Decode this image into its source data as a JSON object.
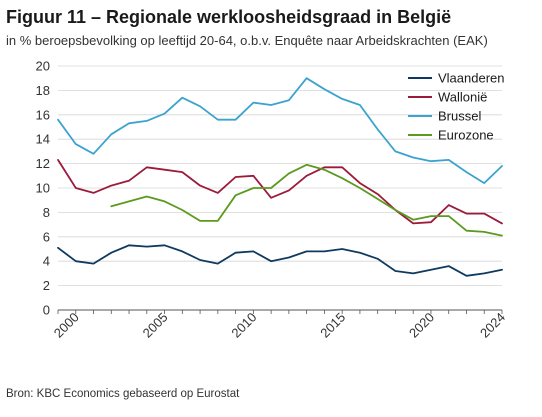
{
  "header": {
    "title": "Figuur 11 – Regionale werkloosheidsgraad in België",
    "subtitle": "in % beroepsbevolking op leeftijd 20-64, o.b.v. Enquête naar Arbeidskrachten (EAK)"
  },
  "footer": {
    "source": "Bron: KBC Economics gebaseerd op Eurostat"
  },
  "chart_data": {
    "type": "line",
    "title": "Figuur 11 – Regionale werkloosheidsgraad in België",
    "subtitle": "in % beroepsbevolking op leeftijd 20-64, o.b.v. Enquête naar Arbeidskrachten (EAK)",
    "xlabel": "",
    "ylabel": "",
    "x": [
      1999,
      2000,
      2001,
      2002,
      2003,
      2004,
      2005,
      2006,
      2007,
      2008,
      2009,
      2010,
      2011,
      2012,
      2013,
      2014,
      2015,
      2016,
      2017,
      2018,
      2019,
      2020,
      2021,
      2022,
      2023,
      2024
    ],
    "x_ticks": [
      2000,
      2005,
      2010,
      2015,
      2020,
      2024
    ],
    "xlim": [
      1999,
      2024
    ],
    "ylim": [
      0,
      20
    ],
    "y_ticks": [
      0,
      2,
      4,
      6,
      8,
      10,
      12,
      14,
      16,
      18,
      20
    ],
    "grid": "horizontal",
    "legend_position": "top-right",
    "series": [
      {
        "name": "Vlaanderen",
        "color": "#0f3a5f",
        "values": [
          5.1,
          4.0,
          3.8,
          4.7,
          5.3,
          5.2,
          5.3,
          4.8,
          4.1,
          3.8,
          4.7,
          4.8,
          4.0,
          4.3,
          4.8,
          4.8,
          5.0,
          4.7,
          4.2,
          3.2,
          3.0,
          3.3,
          3.6,
          2.8,
          3.0,
          3.3
        ]
      },
      {
        "name": "Wallonië",
        "color": "#9b1b3b",
        "values": [
          12.3,
          10.0,
          9.6,
          10.2,
          10.6,
          11.7,
          11.5,
          11.3,
          10.2,
          9.6,
          10.9,
          11.0,
          9.2,
          9.8,
          11.0,
          11.7,
          11.7,
          10.4,
          9.5,
          8.2,
          7.1,
          7.2,
          8.6,
          7.9,
          7.9,
          7.1
        ]
      },
      {
        "name": "Brussel",
        "color": "#3ba3cf",
        "values": [
          15.6,
          13.6,
          12.8,
          14.4,
          15.3,
          15.5,
          16.1,
          17.4,
          16.7,
          15.6,
          15.6,
          17.0,
          16.8,
          17.2,
          19.0,
          18.1,
          17.3,
          16.8,
          14.8,
          13.0,
          12.5,
          12.2,
          12.3,
          11.3,
          10.4,
          11.8
        ]
      },
      {
        "name": "Eurozone",
        "color": "#5b9a1e",
        "values": [
          null,
          null,
          null,
          8.5,
          8.9,
          9.3,
          8.9,
          8.2,
          7.3,
          7.3,
          9.4,
          10.0,
          10.0,
          11.2,
          11.9,
          11.5,
          10.8,
          10.0,
          9.1,
          8.2,
          7.4,
          7.7,
          7.7,
          6.5,
          6.4,
          6.1
        ]
      }
    ]
  }
}
